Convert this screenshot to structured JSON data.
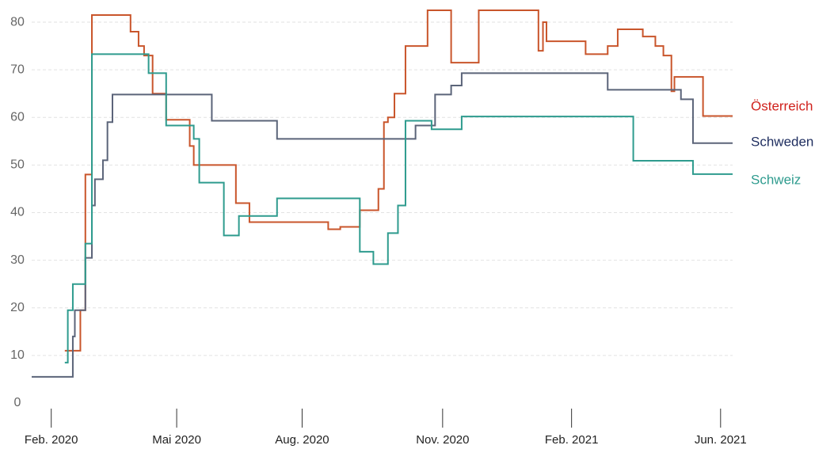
{
  "chart_data": {
    "type": "line",
    "step": true,
    "xlim": [
      2020.044,
      2021.441
    ],
    "ylim": [
      0,
      83
    ],
    "yticks": [
      0,
      10,
      20,
      30,
      40,
      50,
      60,
      70,
      80
    ],
    "xticks": [
      {
        "value": 2020.083,
        "label": "Feb. 2020"
      },
      {
        "value": 2020.333,
        "label": "Mai 2020"
      },
      {
        "value": 2020.583,
        "label": "Aug. 2020"
      },
      {
        "value": 2020.863,
        "label": "Nov. 2020"
      },
      {
        "value": 2021.12,
        "label": "Feb. 2021"
      },
      {
        "value": 2021.417,
        "label": "Jun. 2021"
      }
    ],
    "grid": true,
    "series": [
      {
        "name": "Österreich",
        "color": "#c9552b",
        "label_color": "#d0211c",
        "x": [
          2020.11,
          2020.141,
          2020.151,
          2020.164,
          2020.241,
          2020.257,
          2020.268,
          2020.285,
          2020.312,
          2020.359,
          2020.367,
          2020.451,
          2020.478,
          2020.635,
          2020.659,
          2020.698,
          2020.735,
          2020.746,
          2020.754,
          2020.767,
          2020.789,
          2020.833,
          2020.88,
          2020.935,
          2021.054,
          2021.063,
          2021.07,
          2021.148,
          2021.192,
          2021.212,
          2021.262,
          2021.287,
          2021.303,
          2021.319,
          2021.325,
          2021.382,
          2021.441
        ],
        "values": [
          11,
          19.5,
          48,
          81.5,
          78,
          75,
          73,
          65,
          59.5,
          54,
          50,
          42,
          38,
          36.5,
          37,
          40.5,
          45,
          59,
          60,
          65,
          75,
          82.5,
          71.5,
          82.5,
          74,
          80,
          76,
          73.3,
          75,
          78.5,
          77,
          75,
          73,
          65.5,
          68.5,
          60.3,
          60.3
        ]
      },
      {
        "name": "Schweden",
        "color": "#5b6479",
        "label_color": "#1d2c5e",
        "x": [
          2020.044,
          2020.126,
          2020.13,
          2020.151,
          2020.164,
          2020.17,
          2020.186,
          2020.195,
          2020.205,
          2020.403,
          2020.533,
          2020.809,
          2020.848,
          2020.88,
          2020.901,
          2021.192,
          2021.338,
          2021.362,
          2021.441
        ],
        "values": [
          5.5,
          14,
          19.5,
          30.5,
          41.5,
          47,
          51,
          59,
          64.8,
          59.3,
          55.5,
          58.3,
          64.8,
          66.7,
          69.3,
          65.8,
          63.8,
          54.6,
          54.6
        ]
      },
      {
        "name": "Schweiz",
        "color": "#2e9b8e",
        "label_color": "#2e9b8e",
        "x": [
          2020.11,
          2020.116,
          2020.126,
          2020.151,
          2020.164,
          2020.277,
          2020.312,
          2020.367,
          2020.378,
          2020.427,
          2020.457,
          2020.533,
          2020.698,
          2020.725,
          2020.754,
          2020.774,
          2020.789,
          2020.841,
          2020.901,
          2021.243,
          2021.362,
          2021.441
        ],
        "values": [
          8.5,
          19.5,
          25,
          33.5,
          73.3,
          69.3,
          58.3,
          55.5,
          46.3,
          35.2,
          39.3,
          43,
          31.8,
          29.2,
          35.7,
          41.5,
          59.3,
          57.5,
          60.2,
          50.9,
          48.1,
          48.1
        ]
      }
    ]
  }
}
